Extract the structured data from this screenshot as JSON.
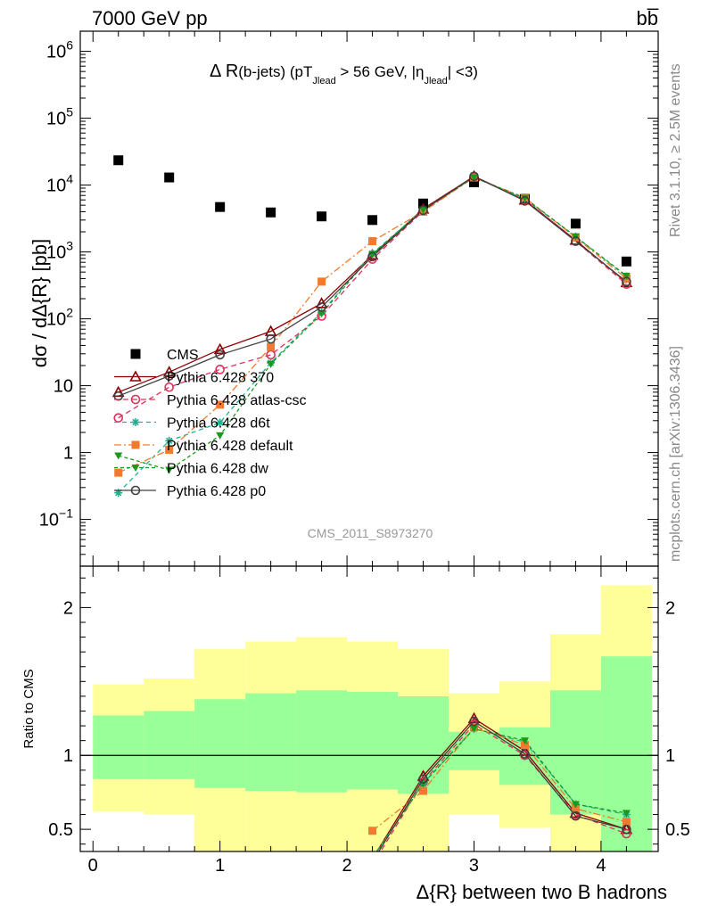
{
  "header": {
    "left": "7000 GeV pp",
    "right": "bb̅"
  },
  "side_text": {
    "rivet": "Rivet 3.1.10, ≥ 2.5M events",
    "mcplots": "mcplots.cern.ch [arXiv:1306.3436]"
  },
  "chart_data": [
    {
      "type": "scatter",
      "panel": "main",
      "title": "Δ R(b-jets) (pT_Jlead > 56 GeV, |η_Jlead| <3)",
      "title_parts": {
        "a": "Δ R",
        "b": "(b-jets) (pT",
        "c": "Jlead",
        "d": " >  56 GeV, |η",
        "e": "Jlead",
        "f": "| <3)"
      },
      "ylabel": "dσ / dΔ{R} [pb]",
      "xlabel": "",
      "yscale": "log",
      "xlim": [
        -0.1,
        4.45
      ],
      "ylim": [
        0.02,
        2000000
      ],
      "y_ticks": [
        {
          "v": 0.1,
          "label": "10",
          "exp": "−1"
        },
        {
          "v": 1,
          "label": "1",
          "exp": ""
        },
        {
          "v": 10,
          "label": "10",
          "exp": ""
        },
        {
          "v": 100,
          "label": "10",
          "exp": "2"
        },
        {
          "v": 1000,
          "label": "10",
          "exp": "3"
        },
        {
          "v": 10000,
          "label": "10",
          "exp": "4"
        },
        {
          "v": 100000,
          "label": "10",
          "exp": "5"
        },
        {
          "v": 1000000,
          "label": "10",
          "exp": "6"
        }
      ],
      "watermark": "CMS_2011_S8973270",
      "x": [
        0.2,
        0.6,
        1.0,
        1.4,
        1.8,
        2.2,
        2.6,
        3.0,
        3.4,
        3.8,
        4.2
      ],
      "series": [
        {
          "name": "CMS",
          "color": "#000000",
          "marker": "square",
          "values": [
            23500,
            13000,
            4700,
            3900,
            3400,
            3000,
            5300,
            11000,
            6200,
            2650,
            720
          ]
        },
        {
          "name": "Pythia 6.428 370",
          "color": "#8b0000",
          "marker": "triangle-open",
          "dash": "",
          "values": [
            8,
            16,
            35,
            65,
            170,
            900,
            4400,
            13500,
            6000,
            1500,
            350
          ]
        },
        {
          "name": "Pythia 6.428 atlas-csc",
          "color": "#e0305a",
          "marker": "circle-open",
          "dash": "6,4",
          "values": [
            3.3,
            9.5,
            17.5,
            29,
            110,
            780,
            4100,
            13300,
            6000,
            1450,
            330
          ]
        },
        {
          "name": "Pythia 6.428 d6t",
          "color": "#20b090",
          "marker": "star",
          "dash": "5,4",
          "values": [
            0.25,
            1.5,
            2.8,
            22,
            125,
            950,
            4300,
            13000,
            6200,
            1700,
            430
          ]
        },
        {
          "name": "Pythia 6.428 default",
          "color": "#f07a30",
          "marker": "square",
          "dash": "8,3,2,3",
          "values": [
            0.5,
            1.1,
            5.2,
            38,
            360,
            1450,
            4000,
            13000,
            6500,
            1650,
            400
          ]
        },
        {
          "name": "Pythia 6.428 dw",
          "color": "#1a9a1a",
          "marker": "triangle-down",
          "dash": "4,3",
          "values": [
            0.9,
            0.55,
            1.8,
            21,
            120,
            920,
            4300,
            13000,
            6400,
            1700,
            440
          ]
        },
        {
          "name": "Pythia 6.428 p0",
          "color": "#404040",
          "marker": "circle-open",
          "dash": "",
          "values": [
            7,
            14,
            29,
            50,
            150,
            850,
            4200,
            13500,
            5800,
            1450,
            360
          ]
        }
      ]
    },
    {
      "type": "scatter",
      "panel": "ratio",
      "ylabel": "Ratio to CMS",
      "xlabel": "Δ{R} between two B hadrons",
      "xlim": [
        -0.1,
        4.45
      ],
      "ylim": [
        0.35,
        2.28
      ],
      "x_ticks": [
        0,
        1,
        2,
        3,
        4
      ],
      "y_ticks": [
        0.5,
        1,
        2
      ],
      "bands": {
        "edges": [
          0.0,
          0.4,
          0.8,
          1.2,
          1.6,
          2.0,
          2.4,
          2.8,
          3.2,
          3.6,
          4.0,
          4.4
        ],
        "green_lo": [
          0.84,
          0.84,
          0.78,
          0.76,
          0.75,
          0.77,
          0.74,
          0.9,
          0.8,
          0.6,
          0.35
        ],
        "green_hi": [
          1.27,
          1.3,
          1.38,
          1.42,
          1.44,
          1.43,
          1.4,
          1.16,
          1.19,
          1.44,
          1.67
        ],
        "yellow_lo": [
          0.62,
          0.6,
          0.35,
          0.35,
          0.35,
          0.35,
          0.35,
          0.6,
          0.51,
          0.35,
          0.35
        ],
        "yellow_hi": [
          1.48,
          1.52,
          1.72,
          1.77,
          1.8,
          1.77,
          1.72,
          1.42,
          1.5,
          1.82,
          2.15
        ],
        "green_color": "#99ff99",
        "yellow_color": "#ffff99"
      },
      "series": [
        {
          "name": "Pythia 6.428 370",
          "values": [
            null,
            null,
            null,
            null,
            null,
            0.3,
            0.86,
            1.25,
            1.03,
            0.61,
            0.5
          ]
        },
        {
          "name": "Pythia 6.428 atlas-csc",
          "values": [
            null,
            null,
            null,
            null,
            null,
            0.26,
            0.82,
            1.21,
            1.0,
            0.6,
            0.47
          ]
        },
        {
          "name": "Pythia 6.428 d6t",
          "values": [
            null,
            null,
            null,
            null,
            null,
            0.31,
            0.81,
            1.18,
            1.09,
            0.67,
            0.6
          ]
        },
        {
          "name": "Pythia 6.428 default",
          "values": [
            null,
            null,
            null,
            null,
            null,
            0.49,
            0.76,
            1.19,
            1.07,
            0.64,
            0.55
          ]
        },
        {
          "name": "Pythia 6.428 dw",
          "values": [
            null,
            null,
            null,
            null,
            null,
            0.3,
            0.81,
            1.18,
            1.1,
            0.67,
            0.61
          ]
        },
        {
          "name": "Pythia 6.428 p0",
          "values": [
            null,
            null,
            null,
            null,
            null,
            0.28,
            0.84,
            1.23,
            1.01,
            0.59,
            0.5
          ]
        }
      ]
    }
  ]
}
